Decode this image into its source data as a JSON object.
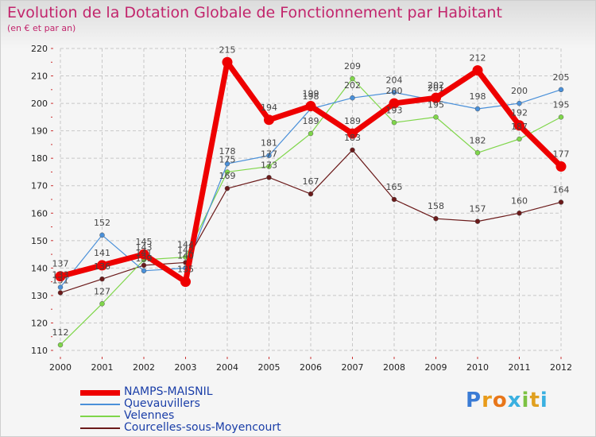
{
  "chart_data": {
    "type": "line",
    "title": "Evolution de la Dotation Globale de Fonctionnement par Habitant",
    "subtitle": "(en € et par an)",
    "x": [
      "2000",
      "2001",
      "2002",
      "2003",
      "2004",
      "2005",
      "2006",
      "2007",
      "2008",
      "2009",
      "2010",
      "2011",
      "2012"
    ],
    "ylim": [
      110,
      220
    ],
    "yticks": [
      110,
      120,
      130,
      140,
      150,
      160,
      170,
      180,
      190,
      200,
      210,
      220
    ],
    "grid": true,
    "series": [
      {
        "name": "NAMPS-MAISNIL",
        "color": "#ee0000",
        "values": [
          137,
          141,
          145,
          135,
          215,
          194,
          199,
          189,
          200,
          202,
          212,
          192,
          177
        ]
      },
      {
        "name": "Quevauvillers",
        "color": "#4a90d9",
        "values": [
          133,
          152,
          139,
          140,
          178,
          181,
          198,
          202,
          204,
          201,
          198,
          200,
          205
        ]
      },
      {
        "name": "Velennes",
        "color": "#7fd64a",
        "values": [
          112,
          127,
          143,
          144,
          175,
          177,
          189,
          209,
          193,
          195,
          182,
          187,
          195
        ]
      },
      {
        "name": "Courcelles-sous-Moyencourt",
        "color": "#6b1a1a",
        "values": [
          131,
          136,
          141,
          142,
          169,
          173,
          167,
          183,
          165,
          158,
          157,
          160,
          164
        ]
      }
    ]
  },
  "logo": {
    "text": "Proxiti"
  }
}
